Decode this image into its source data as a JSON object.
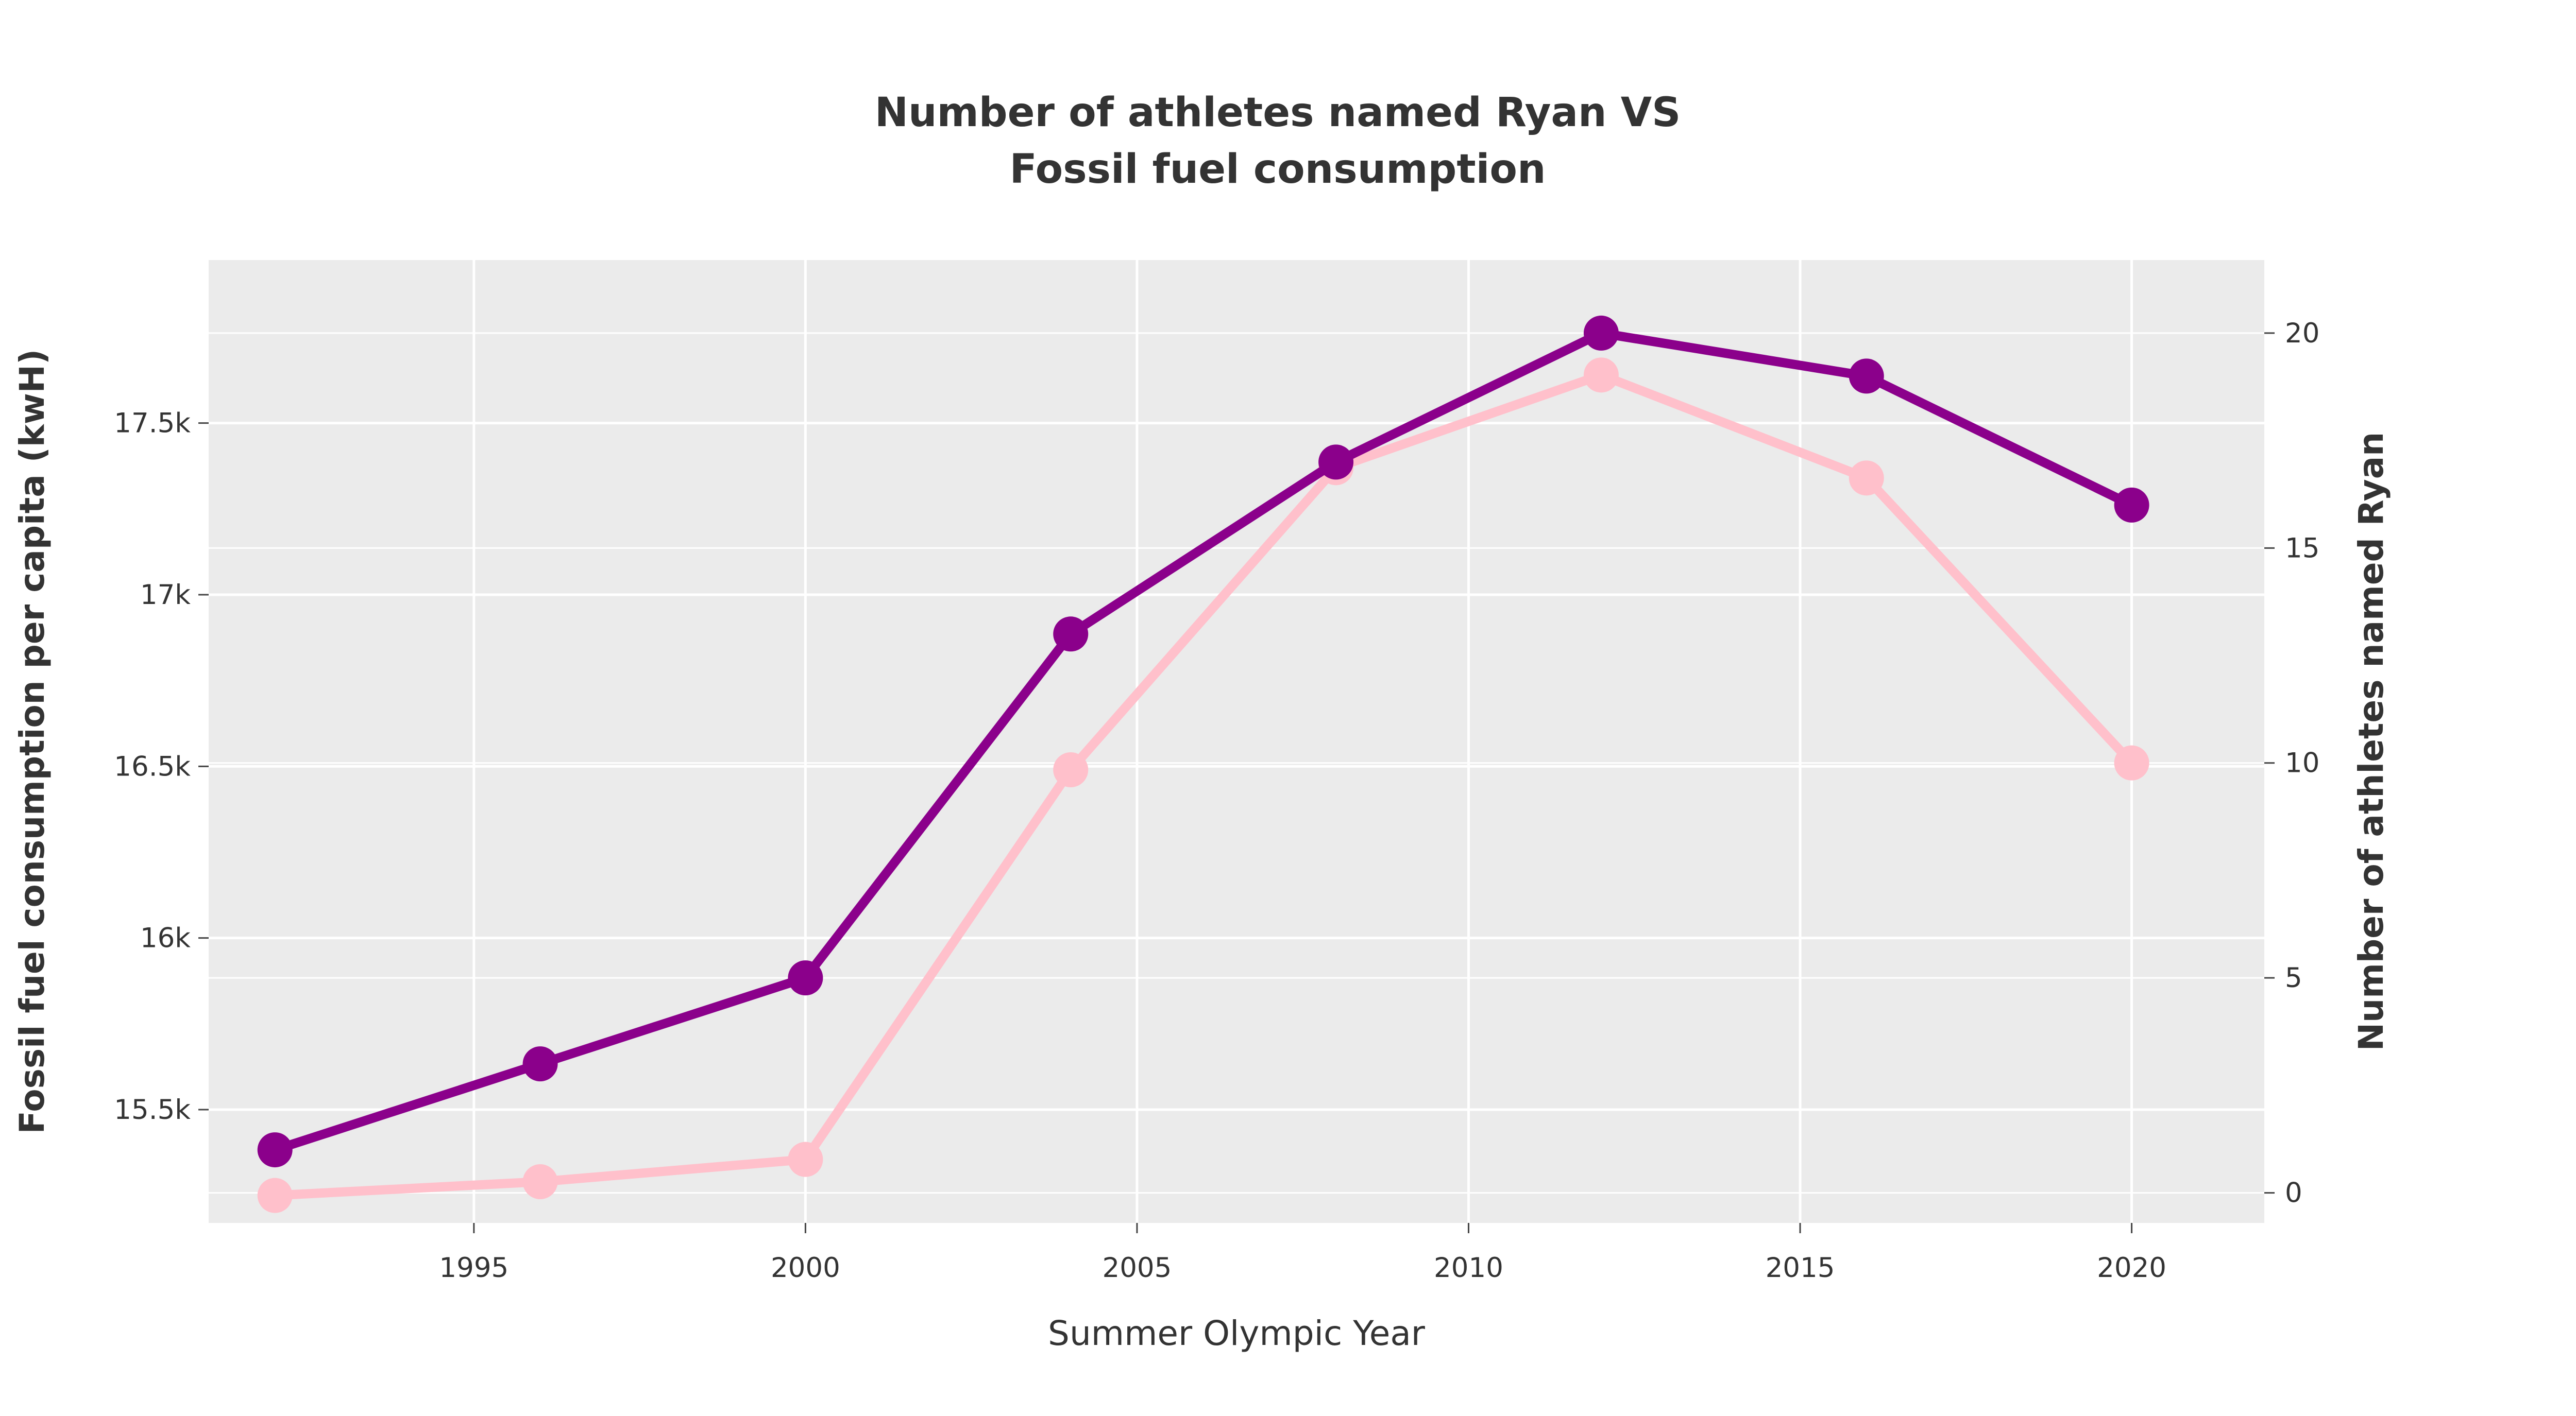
{
  "chart_data": {
    "type": "line",
    "title_lines": [
      "Number of athletes named Ryan VS",
      "Fossil fuel consumption"
    ],
    "xlabel": "Summer Olympic Year",
    "ylabel_left": "Fossil fuel consumption per capita (kwH)",
    "ylabel_right": "Number of athletes named Ryan",
    "x": [
      1992,
      1996,
      2000,
      2004,
      2008,
      2012,
      2016,
      2020
    ],
    "x_ticks": [
      1995,
      2000,
      2005,
      2010,
      2015,
      2020
    ],
    "x_tick_labels": [
      "1995",
      "2000",
      "2005",
      "2010",
      "2015",
      "2020"
    ],
    "xlim": [
      1991.0,
      2022.0
    ],
    "y_left_ticks": [
      15500,
      16000,
      16500,
      17000,
      17500
    ],
    "y_left_tick_labels": [
      "15.5k",
      "16k",
      "16.5k",
      "17k",
      "17.5k"
    ],
    "y_left_lim": [
      15170,
      17975
    ],
    "y_right_ticks": [
      0,
      5,
      10,
      15,
      20
    ],
    "y_right_tick_labels": [
      "0",
      "5",
      "10",
      "15",
      "20"
    ],
    "y_right_lim": [
      -0.7,
      21.7
    ],
    "series": [
      {
        "axis": "left",
        "color": "#ffc0cb",
        "values": [
          15250,
          15290,
          15355,
          16490,
          17370,
          17640,
          17340,
          16510
        ]
      },
      {
        "axis": "right",
        "color": "#8b008b",
        "values": [
          1,
          3,
          5,
          13,
          17,
          20,
          19,
          16
        ]
      }
    ],
    "grid": true,
    "plot_background": "#ebebeb",
    "grid_color": "#ffffff"
  }
}
